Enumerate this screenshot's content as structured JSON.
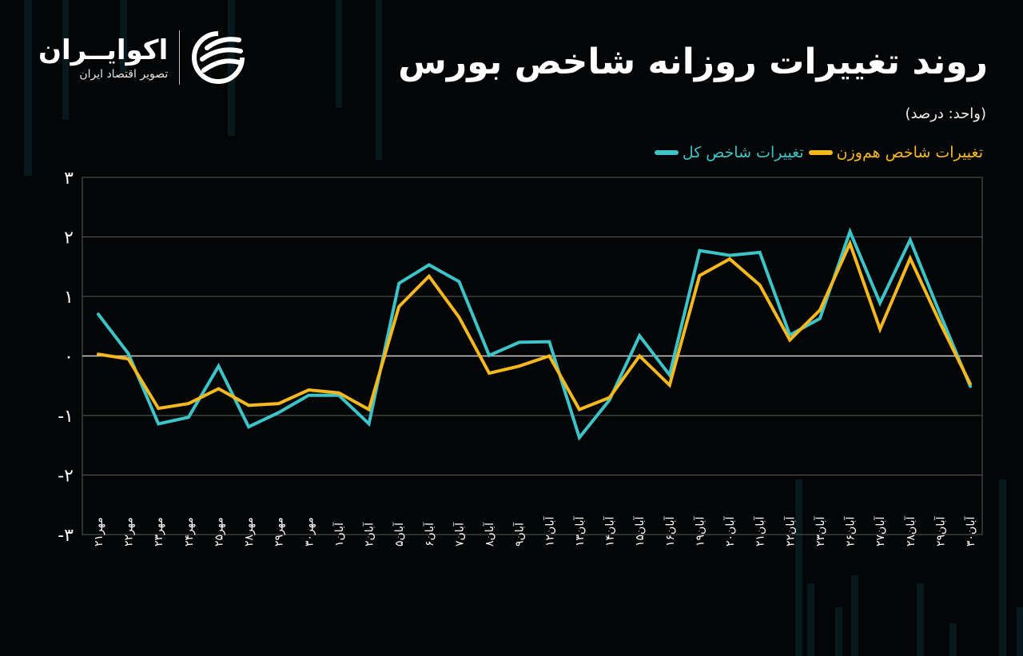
{
  "header": {
    "title": "روند تغییرات روزانه شاخص بورس",
    "unit": "(واحد: درصد)"
  },
  "logo": {
    "name": "اکوایــران",
    "tagline": "تصویر اقتصاد ایران"
  },
  "legend": [
    {
      "label": "تغییرات شاخص کل",
      "color": "#3cc4c9"
    },
    {
      "label": "تغییرات شاخص هم‌وزن",
      "color": "#f5b91e"
    }
  ],
  "colors": {
    "background": "#030506",
    "total_index": "#3cc4c9",
    "equal_weight_index": "#f5b91e",
    "grid": "#5a5a5a",
    "zero_line": "#cfcfcf"
  },
  "chart_data": {
    "type": "line",
    "title": "روند تغییرات روزانه شاخص بورس",
    "subtitle": "(واحد: درصد)",
    "xlabel": "",
    "ylabel": "",
    "ylim": [
      -3,
      3
    ],
    "yticks": [
      3,
      2,
      1,
      0,
      -1,
      -2,
      -3
    ],
    "ytick_labels": [
      "۳",
      "۲",
      "۱",
      "۰",
      "-۱",
      "-۲",
      "-۳"
    ],
    "grid": true,
    "legend_position": "top-right",
    "categories": [
      "مهر۲۱",
      "مهر۲۲",
      "مهر۲۳",
      "مهر۲۴",
      "مهر۲۵",
      "مهر۲۸",
      "مهر۲۹",
      "مهر۳۰",
      "آبان۱",
      "آبان۲",
      "آبان۵",
      "آبان۶",
      "آبان۷",
      "آبان۸",
      "آبان۹",
      "آبان۱۲",
      "آبان۱۳",
      "آبان۱۴",
      "آبان۱۵",
      "آبان۱۶",
      "آبان۱۹",
      "آبان۲۰",
      "آبان۲۱",
      "آبان۲۲",
      "آبان۲۳",
      "آبان۲۶",
      "آبان۲۷",
      "آبان۲۸",
      "آبان۲۹",
      "آبان۳۰"
    ],
    "series": [
      {
        "name": "تغییرات شاخص کل",
        "color": "#3cc4c9",
        "values": [
          0.7,
          0.04,
          -1.14,
          -1.03,
          -0.17,
          -1.19,
          -0.95,
          -0.66,
          -0.66,
          -1.14,
          1.22,
          1.53,
          1.25,
          0.01,
          0.23,
          0.24,
          -1.37,
          -0.74,
          0.34,
          -0.32,
          1.77,
          1.69,
          1.74,
          0.35,
          0.63,
          2.09,
          0.89,
          1.95,
          0.7,
          -0.51
        ]
      },
      {
        "name": "تغییرات شاخص هم‌وزن",
        "color": "#f5b91e",
        "values": [
          0.03,
          -0.05,
          -0.88,
          -0.8,
          -0.55,
          -0.83,
          -0.8,
          -0.57,
          -0.62,
          -0.9,
          0.83,
          1.34,
          0.65,
          -0.29,
          -0.17,
          0.0,
          -0.9,
          -0.7,
          0.0,
          -0.49,
          1.35,
          1.63,
          1.19,
          0.27,
          0.77,
          1.89,
          0.45,
          1.64,
          0.55,
          -0.47
        ]
      }
    ]
  }
}
